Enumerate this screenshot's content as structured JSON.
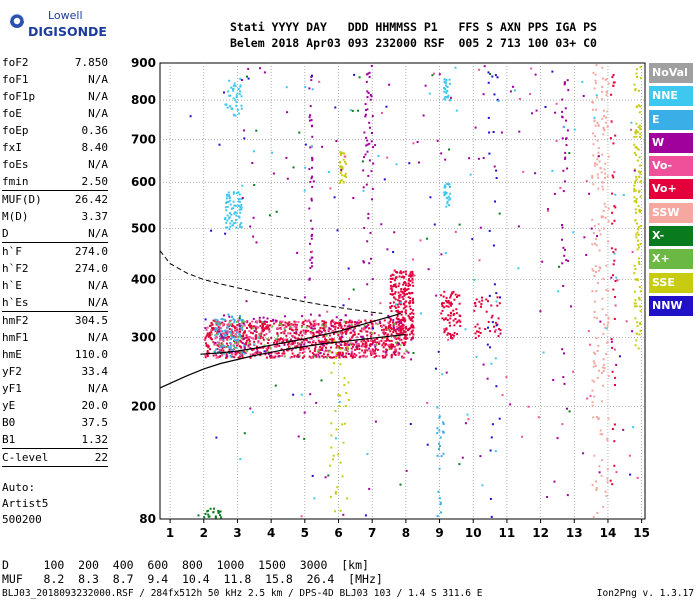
{
  "logo": {
    "line1": "Lowell",
    "line2": "DIGISONDE"
  },
  "header": {
    "line1": "Stati YYYY DAY   DDD HHMMSS P1   FFS S AXN PPS IGA PS",
    "line2": "Belem 2018 Apr03 093 232000 RSF  005 2 713 100 03+ C0"
  },
  "params": [
    {
      "name": "foF2",
      "value": "7.850"
    },
    {
      "name": "foF1",
      "value": "N/A"
    },
    {
      "name": "foF1p",
      "value": "N/A"
    },
    {
      "name": "foE",
      "value": "N/A"
    },
    {
      "name": "foEp",
      "value": "0.36"
    },
    {
      "name": "fxI",
      "value": "8.40"
    },
    {
      "name": "foEs",
      "value": "N/A"
    },
    {
      "name": "fmin",
      "value": "2.50"
    },
    {
      "name": "MUF(D)",
      "value": "26.42"
    },
    {
      "name": "M(D)",
      "value": "3.37"
    },
    {
      "name": "D",
      "value": "N/A"
    },
    {
      "name": "h`F",
      "value": "274.0"
    },
    {
      "name": "h`F2",
      "value": "274.0"
    },
    {
      "name": "h`E",
      "value": "N/A"
    },
    {
      "name": "h`Es",
      "value": "N/A"
    },
    {
      "name": "hmF2",
      "value": "304.5"
    },
    {
      "name": "hmF1",
      "value": "N/A"
    },
    {
      "name": "hmE",
      "value": "110.0"
    },
    {
      "name": "yF2",
      "value": "33.4"
    },
    {
      "name": "yF1",
      "value": "N/A"
    },
    {
      "name": "yE",
      "value": "20.0"
    },
    {
      "name": "B0",
      "value": "37.5"
    },
    {
      "name": "B1",
      "value": "1.32"
    },
    {
      "name": "C-level",
      "value": "22"
    }
  ],
  "auto": {
    "line1": "Auto:",
    "line2": "Artist5",
    "line3": "500200"
  },
  "legend": [
    {
      "label": "NoVal",
      "color": "#a0a0a0"
    },
    {
      "label": "NNE",
      "color": "#3ec8f0"
    },
    {
      "label": "E",
      "color": "#3aaee6"
    },
    {
      "label": "W",
      "color": "#a0009c"
    },
    {
      "label": "Vo-",
      "color": "#f0509a"
    },
    {
      "label": "Vo+",
      "color": "#e4003a"
    },
    {
      "label": "SSW",
      "color": "#f4a8a0"
    },
    {
      "label": "X-",
      "color": "#0a7a1e"
    },
    {
      "label": "X+",
      "color": "#6cb844"
    },
    {
      "label": "SSE",
      "color": "#c8cc10"
    },
    {
      "label": "NNW",
      "color": "#2010c8"
    }
  ],
  "table": {
    "line1": "D     100  200  400  600  800  1000  1500  3000  [km]",
    "line2": "MUF   8.2  8.3  8.7  9.4  10.4  11.8  15.8  26.4  [MHz]"
  },
  "footer": {
    "left": "BLJ03_2018093232000.RSF / 284fx512h 50 kHz 2.5 km / DPS-4D BLJ03 103 / 1.4 S 311.6 E",
    "right": "Ion2Png v. 1.3.17"
  },
  "chart_data": {
    "type": "scatter",
    "x_ticks": [
      "1",
      "2",
      "3",
      "4",
      "5",
      "6",
      "7",
      "8",
      "9",
      "10",
      "11",
      "12",
      "13",
      "14",
      "15"
    ],
    "y_ticks": [
      "80",
      "200",
      "300",
      "400",
      "500",
      "600",
      "700",
      "800",
      "900"
    ],
    "xlim": [
      0.7,
      15.1
    ],
    "ylim": [
      80,
      900
    ],
    "y_scale": "sqrt",
    "grid": true,
    "legend_position": "right",
    "profile_solid": {
      "x": [
        0.7,
        1.5,
        2.0,
        2.5,
        3.0,
        3.5,
        4.0,
        4.5,
        5.0,
        5.5,
        6.0,
        6.5,
        7.0,
        7.5,
        8.0
      ],
      "y": [
        225,
        242,
        252,
        260,
        266,
        272,
        277,
        282,
        286,
        290,
        293,
        296,
        299,
        302,
        305
      ]
    },
    "profile_dashed": {
      "x": [
        0.7,
        1.0,
        1.5,
        2.0,
        2.5,
        3.0,
        3.5,
        4.0,
        4.5,
        5.0,
        5.5,
        6.0,
        6.5,
        7.0,
        7.3
      ],
      "y": [
        455,
        430,
        412,
        400,
        392,
        385,
        378,
        372,
        366,
        360,
        355,
        350,
        346,
        342,
        340
      ]
    },
    "profile_trace": {
      "x": [
        1.9,
        2.5,
        3.0,
        3.5,
        4.0,
        4.5,
        5.0,
        5.5,
        6.0,
        6.5,
        7.0,
        7.5,
        7.85
      ],
      "y": [
        274,
        276,
        279,
        283,
        288,
        293,
        298,
        304,
        310,
        318,
        326,
        334,
        340
      ]
    },
    "echo_clusters": [
      {
        "x": [
          2.0,
          8.0
        ],
        "y": [
          270,
          330
        ],
        "color": "#e4003a",
        "n": 900
      },
      {
        "x": [
          2.3,
          3.2
        ],
        "y": [
          270,
          340
        ],
        "color": "#3aaee6",
        "n": 110
      },
      {
        "x": [
          2.0,
          8.0
        ],
        "y": [
          270,
          330
        ],
        "color": "#f0509a",
        "n": 200
      },
      {
        "x": [
          7.5,
          8.2
        ],
        "y": [
          300,
          420
        ],
        "color": "#e4003a",
        "n": 220
      },
      {
        "x": [
          9.0,
          9.6
        ],
        "y": [
          300,
          380
        ],
        "color": "#e4003a",
        "n": 80
      },
      {
        "x": [
          10.0,
          10.8
        ],
        "y": [
          300,
          370
        ],
        "color": "#e4003a",
        "n": 40
      },
      {
        "x": [
          2.0,
          8.0
        ],
        "y": [
          270,
          330
        ],
        "color": "#6cb844",
        "n": 80
      },
      {
        "x": [
          2.0,
          8.0
        ],
        "y": [
          270,
          340
        ],
        "color": "#a0009c",
        "n": 80
      },
      {
        "x": [
          2.6,
          3.1
        ],
        "y": [
          500,
          580
        ],
        "color": "#3ec8f0",
        "n": 70
      },
      {
        "x": [
          2.6,
          3.1
        ],
        "y": [
          760,
          860
        ],
        "color": "#3ec8f0",
        "n": 40
      },
      {
        "x": [
          9.1,
          9.3
        ],
        "y": [
          540,
          600
        ],
        "color": "#3ec8f0",
        "n": 25
      },
      {
        "x": [
          9.1,
          9.3
        ],
        "y": [
          800,
          860
        ],
        "color": "#3ec8f0",
        "n": 25
      },
      {
        "x": [
          13.5,
          14.0
        ],
        "y": [
          80,
          900
        ],
        "color": "#f4a8a0",
        "n": 180
      },
      {
        "x": [
          14.75,
          14.95
        ],
        "y": [
          280,
          900
        ],
        "color": "#c8cc10",
        "n": 120
      },
      {
        "x": [
          6.0,
          6.2
        ],
        "y": [
          600,
          680
        ],
        "color": "#c8cc10",
        "n": 30
      },
      {
        "x": [
          5.7,
          6.3
        ],
        "y": [
          80,
          300
        ],
        "color": "#c8cc10",
        "n": 40
      },
      {
        "x": [
          6.7,
          7.0
        ],
        "y": [
          400,
          900
        ],
        "color": "#a0009c",
        "n": 50
      },
      {
        "x": [
          5.1,
          5.2
        ],
        "y": [
          400,
          900
        ],
        "color": "#a0009c",
        "n": 40
      },
      {
        "x": [
          12.6,
          12.8
        ],
        "y": [
          180,
          900
        ],
        "color": "#a0009c",
        "n": 40
      },
      {
        "x": [
          10.4,
          10.7
        ],
        "y": [
          80,
          900
        ],
        "color": "#2010c8",
        "n": 30
      },
      {
        "x": [
          14.05,
          14.2
        ],
        "y": [
          80,
          900
        ],
        "color": "#e4003a",
        "n": 40
      },
      {
        "x": [
          8.9,
          9.1
        ],
        "y": [
          80,
          200
        ],
        "color": "#3aaee6",
        "n": 25
      },
      {
        "x": [
          1.8,
          2.6
        ],
        "y": [
          82,
          90
        ],
        "color": "#0a7a1e",
        "n": 20
      },
      {
        "x": [
          3.0,
          14.9
        ],
        "y": [
          80,
          900
        ],
        "color": "#a0009c",
        "n": 120
      },
      {
        "x": [
          3.0,
          14.9
        ],
        "y": [
          80,
          900
        ],
        "color": "#3ec8f0",
        "n": 60
      },
      {
        "x": [
          4.5,
          14.9
        ],
        "y": [
          80,
          900
        ],
        "color": "#f0509a",
        "n": 60
      },
      {
        "x": [
          1.5,
          14.9
        ],
        "y": [
          80,
          900
        ],
        "color": "#2010c8",
        "n": 40
      },
      {
        "x": [
          3.0,
          13.0
        ],
        "y": [
          80,
          900
        ],
        "color": "#0a7a1e",
        "n": 30
      }
    ]
  }
}
